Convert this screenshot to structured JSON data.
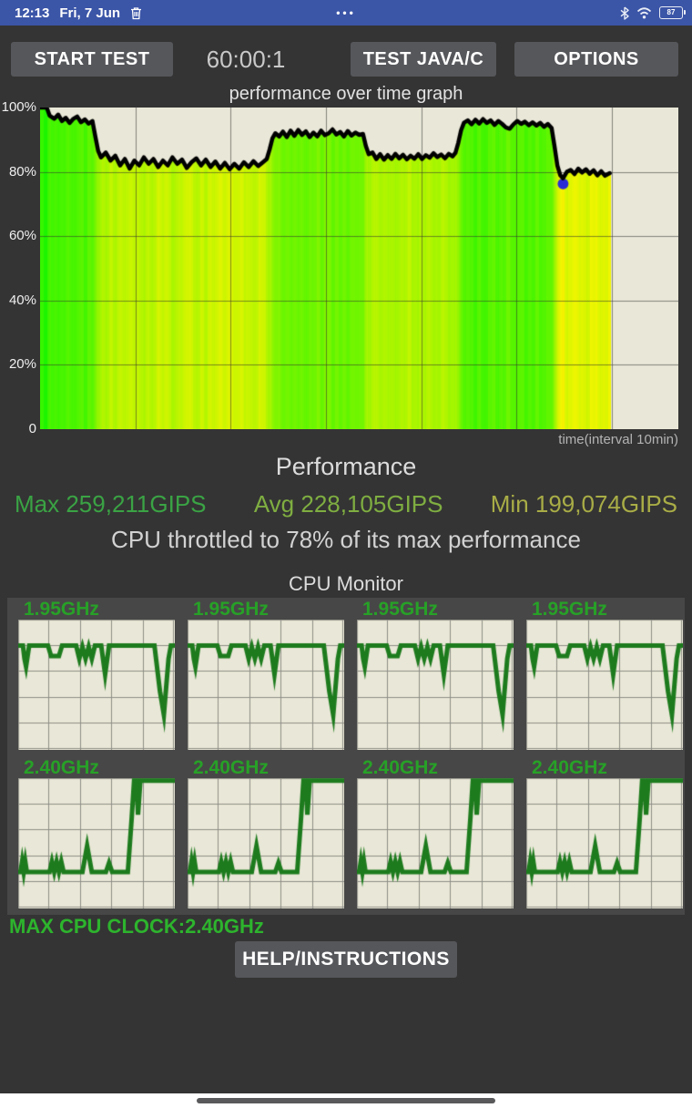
{
  "status_bar": {
    "time": "12:13",
    "date": "Fri, 7 Jun",
    "center_dots": "•••",
    "battery_percent": "87"
  },
  "toolbar": {
    "start_label": "START TEST",
    "timer": "60:00:1",
    "java_label": "TEST JAVA/C",
    "options_label": "OPTIONS"
  },
  "perf_graph": {
    "title": "performance over time graph",
    "y_ticks": [
      "100%",
      "80%",
      "60%",
      "40%",
      "20%",
      "0"
    ],
    "x_caption": "time(interval 10min)"
  },
  "results": {
    "title": "Performance",
    "max_label": "Max 259,211GIPS",
    "avg_label": "Avg 228,105GIPS",
    "min_label": "Min 199,074GIPS",
    "max_color": "#3aa344",
    "avg_color": "#7fae41",
    "min_color": "#a9ad46",
    "throttle_text": "CPU throttled to 78% of its max performance"
  },
  "cpu_monitor": {
    "title": "CPU Monitor",
    "rows": [
      {
        "label": "1.95GHz"
      },
      {
        "label": "2.40GHz"
      }
    ],
    "max_clock_text": "MAX CPU CLOCK:2.40GHz"
  },
  "help": {
    "label": "HELP/INSTRUCTIONS"
  },
  "colors": {
    "status_bar_bg": "#3b55a7",
    "app_bg": "#343434",
    "button_bg": "#56575b",
    "panel_bg": "#474747"
  },
  "chart_data": {
    "type": "line",
    "performance": {
      "title": "performance over time graph",
      "xlabel": "time(interval 10min)",
      "x_range_minutes": [
        0,
        60
      ],
      "x_plotted_minutes": 67,
      "y_range_percent": [
        0,
        100
      ],
      "grid_interval_minutes": 10,
      "plot_bg": "#e9e7d7",
      "grid_color": "rgba(50,50,50,0.55)",
      "line_color": "#000000",
      "fill_hue_at_78": 61,
      "fill_hue_at_100": 110,
      "min_marker": {
        "x": 54.9,
        "y": 78,
        "color": "#2b2bd5"
      },
      "points": [
        [
          0,
          100
        ],
        [
          0.7,
          100
        ],
        [
          1.0,
          97.5
        ],
        [
          1.5,
          96.5
        ],
        [
          1.9,
          97.8
        ],
        [
          2.3,
          95.8
        ],
        [
          2.7,
          96.8
        ],
        [
          3.1,
          95.2
        ],
        [
          3.5,
          96.5
        ],
        [
          3.9,
          97.2
        ],
        [
          4.3,
          95.4
        ],
        [
          4.7,
          96.3
        ],
        [
          5.1,
          95.0
        ],
        [
          5.5,
          95.8
        ],
        [
          5.8,
          91
        ],
        [
          6.1,
          86.5
        ],
        [
          6.4,
          84.5
        ],
        [
          6.9,
          86
        ],
        [
          7.4,
          83.5
        ],
        [
          7.9,
          85
        ],
        [
          8.4,
          82
        ],
        [
          8.9,
          84
        ],
        [
          9.4,
          81
        ],
        [
          9.9,
          83.5
        ],
        [
          10.4,
          82
        ],
        [
          10.9,
          84.5
        ],
        [
          11.4,
          82.5
        ],
        [
          11.9,
          84
        ],
        [
          12.4,
          81.5
        ],
        [
          12.9,
          83.5
        ],
        [
          13.4,
          82
        ],
        [
          13.9,
          84.5
        ],
        [
          14.4,
          82.5
        ],
        [
          14.9,
          83.8
        ],
        [
          15.4,
          81.2
        ],
        [
          15.9,
          83
        ],
        [
          16.4,
          84.2
        ],
        [
          16.9,
          82
        ],
        [
          17.4,
          83.8
        ],
        [
          17.9,
          81.5
        ],
        [
          18.4,
          83.2
        ],
        [
          18.9,
          81
        ],
        [
          19.4,
          82.8
        ],
        [
          19.9,
          80.8
        ],
        [
          20.4,
          82.5
        ],
        [
          20.9,
          81
        ],
        [
          21.4,
          83
        ],
        [
          21.9,
          81.5
        ],
        [
          22.4,
          83.3
        ],
        [
          22.9,
          81.8
        ],
        [
          23.4,
          83
        ],
        [
          23.8,
          84
        ],
        [
          24.1,
          87
        ],
        [
          24.4,
          90.5
        ],
        [
          24.7,
          92
        ],
        [
          25.1,
          91
        ],
        [
          25.5,
          92.5
        ],
        [
          25.9,
          90.8
        ],
        [
          26.3,
          92.8
        ],
        [
          26.7,
          91.2
        ],
        [
          27.1,
          93
        ],
        [
          27.5,
          91.5
        ],
        [
          27.9,
          92.6
        ],
        [
          28.3,
          90.8
        ],
        [
          28.7,
          92.2
        ],
        [
          29.1,
          91
        ],
        [
          29.5,
          92.8
        ],
        [
          29.9,
          91.4
        ],
        [
          30.3,
          92
        ],
        [
          30.7,
          93.2
        ],
        [
          31.1,
          91.6
        ],
        [
          31.5,
          92.4
        ],
        [
          31.9,
          91
        ],
        [
          32.3,
          92.7
        ],
        [
          32.7,
          91.3
        ],
        [
          33.1,
          92.2
        ],
        [
          33.5,
          91.5
        ],
        [
          33.9,
          91.8
        ],
        [
          34.2,
          88
        ],
        [
          34.5,
          85.5
        ],
        [
          34.9,
          86
        ],
        [
          35.3,
          84
        ],
        [
          35.7,
          85.5
        ],
        [
          36.1,
          83.8
        ],
        [
          36.5,
          85.2
        ],
        [
          36.9,
          84
        ],
        [
          37.3,
          85.6
        ],
        [
          37.7,
          84.2
        ],
        [
          38.1,
          85.3
        ],
        [
          38.5,
          83.9
        ],
        [
          38.9,
          85
        ],
        [
          39.3,
          84.1
        ],
        [
          39.7,
          85.5
        ],
        [
          40.1,
          84
        ],
        [
          40.5,
          85.2
        ],
        [
          40.9,
          84.4
        ],
        [
          41.3,
          85.8
        ],
        [
          41.7,
          84.6
        ],
        [
          42.1,
          85.4
        ],
        [
          42.5,
          84.2
        ],
        [
          42.9,
          85.6
        ],
        [
          43.3,
          84.8
        ],
        [
          43.6,
          85.9
        ],
        [
          43.9,
          89
        ],
        [
          44.2,
          93
        ],
        [
          44.5,
          95.3
        ],
        [
          44.9,
          96
        ],
        [
          45.3,
          94.8
        ],
        [
          45.7,
          96.2
        ],
        [
          46.1,
          95
        ],
        [
          46.5,
          96.4
        ],
        [
          46.9,
          95.2
        ],
        [
          47.3,
          96
        ],
        [
          47.7,
          94.6
        ],
        [
          48.1,
          95.8
        ],
        [
          48.5,
          94.9
        ],
        [
          48.9,
          93.8
        ],
        [
          49.3,
          93.4
        ],
        [
          49.7,
          94.8
        ],
        [
          50.1,
          95.8
        ],
        [
          50.5,
          94.9
        ],
        [
          50.9,
          95.6
        ],
        [
          51.3,
          94.5
        ],
        [
          51.7,
          95.4
        ],
        [
          52.1,
          94.4
        ],
        [
          52.5,
          95.2
        ],
        [
          52.9,
          94
        ],
        [
          53.3,
          94.9
        ],
        [
          53.7,
          93.6
        ],
        [
          54.0,
          88
        ],
        [
          54.3,
          82
        ],
        [
          54.6,
          79
        ],
        [
          54.9,
          78
        ],
        [
          55.3,
          80
        ],
        [
          55.7,
          80.6
        ],
        [
          56.1,
          79.3
        ],
        [
          56.5,
          81
        ],
        [
          56.9,
          79.8
        ],
        [
          57.3,
          80.8
        ],
        [
          57.7,
          79.4
        ],
        [
          58.1,
          80.5
        ],
        [
          58.5,
          78.9
        ],
        [
          58.9,
          80.2
        ],
        [
          59.3,
          78.8
        ],
        [
          59.8,
          79.6
        ]
      ]
    },
    "cpu_cores": {
      "plot_bg": "#e9e7d7",
      "grid_color": "#8e8e86",
      "line_color": "#1d7b1d",
      "grid_divisions": 5,
      "top_row": {
        "label": "1.95GHz",
        "points_pct": [
          [
            0,
            20
          ],
          [
            3,
            20
          ],
          [
            4,
            30
          ],
          [
            5,
            36
          ],
          [
            6,
            28
          ],
          [
            7,
            20
          ],
          [
            16,
            20
          ],
          [
            19,
            20
          ],
          [
            21,
            28
          ],
          [
            26,
            28
          ],
          [
            28,
            20
          ],
          [
            37,
            20
          ],
          [
            39,
            30
          ],
          [
            41,
            21
          ],
          [
            43,
            30
          ],
          [
            45,
            21
          ],
          [
            47,
            30
          ],
          [
            49,
            20
          ],
          [
            53,
            20
          ],
          [
            55.5,
            42
          ],
          [
            58,
            20
          ],
          [
            87,
            20
          ],
          [
            90.5,
            55
          ],
          [
            93,
            73
          ],
          [
            96,
            30
          ],
          [
            97.5,
            20
          ],
          [
            100,
            20
          ]
        ]
      },
      "bottom_row": {
        "label": "2.40GHz",
        "points_pct": [
          [
            0,
            72
          ],
          [
            1.5,
            72
          ],
          [
            2.5,
            64
          ],
          [
            3.5,
            72
          ],
          [
            4.5,
            64
          ],
          [
            5.5,
            72
          ],
          [
            12,
            72
          ],
          [
            20,
            72
          ],
          [
            21.5,
            64
          ],
          [
            23,
            72
          ],
          [
            24.5,
            64
          ],
          [
            26,
            72
          ],
          [
            27.5,
            64
          ],
          [
            29,
            72
          ],
          [
            41,
            72
          ],
          [
            44,
            52
          ],
          [
            47,
            72
          ],
          [
            56,
            72
          ],
          [
            58,
            65
          ],
          [
            60,
            72
          ],
          [
            70,
            72
          ],
          [
            72.5,
            30
          ],
          [
            74,
            2
          ],
          [
            75.5,
            2
          ],
          [
            76.5,
            28
          ],
          [
            78,
            2
          ],
          [
            100,
            2
          ]
        ]
      }
    }
  }
}
